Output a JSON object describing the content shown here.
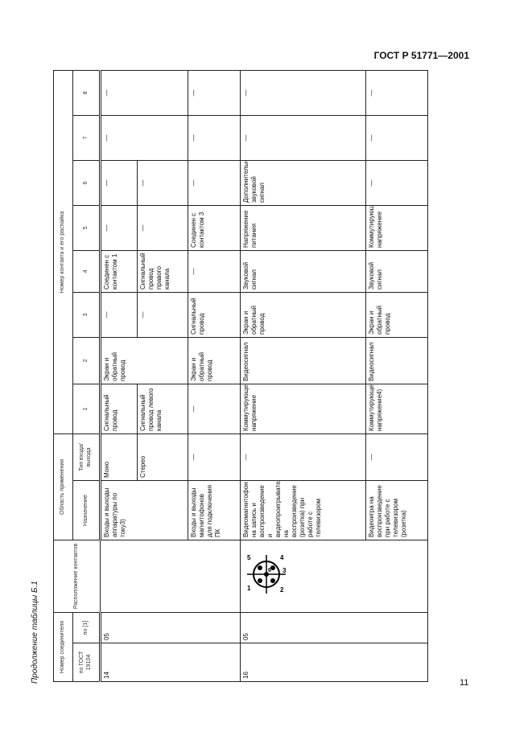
{
  "header": {
    "standard": "ГОСТ Р 51771—2001"
  },
  "caption": "Продолжение таблицы Б.1",
  "page_number": "11",
  "table": {
    "head": {
      "connector_number": "Номер соединителя",
      "contact_layout": "Расположение контактов",
      "application": "Область применения",
      "contact_wiring": "Номер контакта и его распайка",
      "by_gost": "по ГОСТ 19104",
      "by_ref": "по [1]",
      "purpose": "Назначение",
      "io_type": "Тип входа/выхода",
      "contacts": [
        "1",
        "2",
        "3",
        "4",
        "5",
        "6",
        "7",
        "8"
      ]
    },
    "group14": {
      "gost": "14",
      "ref": "05",
      "purpose_audio": "Входы и выходы аппаратуры по току3)",
      "mono": {
        "type": "Моно",
        "c1": "Сигнальный провод",
        "c2": "Экран и обратный провод",
        "c3": "—",
        "c4": "Соединен с контактом 1",
        "c5": "—",
        "c6": "—",
        "c7": "—",
        "c8": "—"
      },
      "stereo": {
        "type": "Стерео",
        "c1": "Сигнальный провод левого канала",
        "c3": "—",
        "c4": "Сигнальный провод правого канала",
        "c5": "—",
        "c6": "—"
      },
      "pc": {
        "purpose": "Входы и выходы магнитофонов для подключения ПК",
        "type": "—",
        "c1": "—",
        "c2": "Экран и обратный провод",
        "c3": "Сигнальный провод",
        "c4": "—",
        "c5": "Соединен с контактом 3",
        "c6": "—",
        "c7": "—",
        "c8": "—"
      }
    },
    "group16": {
      "gost": "16",
      "ref": "05",
      "pin_labels": [
        "1",
        "2",
        "3",
        "4",
        "5",
        "6"
      ],
      "vcr": {
        "purpose": "Видеомагнитофон на запись и воспроизведение и видеопроигрыватель на воспроизведение (розетка) при работе с телевизором",
        "type": "—",
        "c1": "Коммутирующее напряжение",
        "c2": "Видеосигнал",
        "c3": "Экран и обратный провод",
        "c4": "Звуковой сигнал",
        "c5": "Напряжение питания",
        "c6": "Дополнительный звуковой сигнал",
        "c7": "—",
        "c8": "—"
      },
      "game": {
        "purpose": "Видеоигра на воспроизведение при работе с телевизором (розетка)",
        "type": "—",
        "c1": "Коммутирующее напряжение4)",
        "c2": "Видеосигнал",
        "c3": "Экран и обратный провод",
        "c4": "Звуковой сигнал",
        "c5": "Коммутирующее напряжение",
        "c6": "—",
        "c7": "—",
        "c8": "—"
      }
    }
  }
}
